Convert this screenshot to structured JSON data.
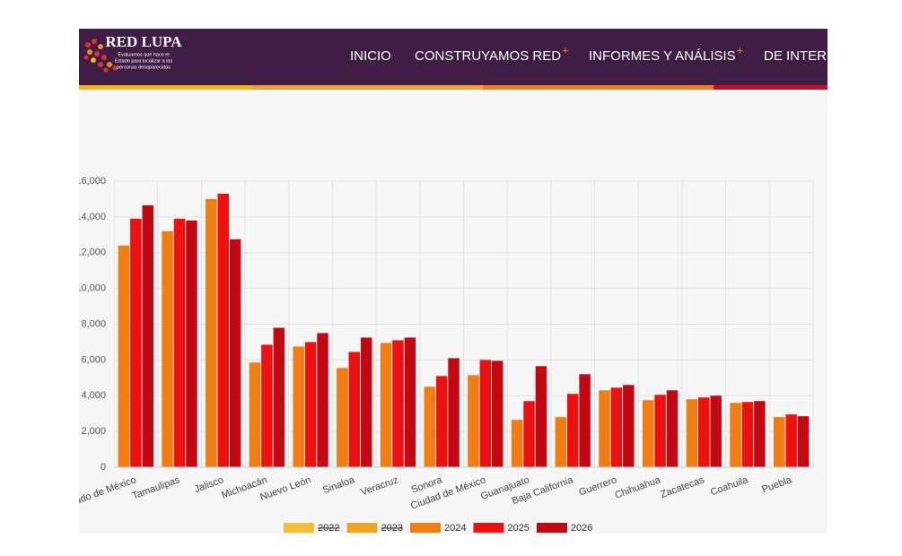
{
  "header": {
    "brand": "RED LUPA",
    "tagline": [
      "Evaluamos qué hace el",
      "Estado para localizar a las",
      "personas desaparecidas"
    ],
    "nav": [
      {
        "label": "INICIO"
      },
      {
        "label": "CONSTRUYAMOS RED",
        "suffix": "+"
      },
      {
        "label": "INFORMES Y ANÁLISIS",
        "suffix": "+"
      },
      {
        "label": "DE INTERÉS"
      }
    ]
  },
  "chart_data": {
    "type": "bar",
    "categories": [
      "Estado de México",
      "Tamaulipas",
      "Jalisco",
      "Michoacán",
      "Nuevo León",
      "Sinaloa",
      "Veracruz",
      "Sonora",
      "Ciudad de México",
      "Guanajuato",
      "Baja California",
      "Guerrero",
      "Chihuahua",
      "Zacatecas",
      "Coahuila",
      "Puebla"
    ],
    "series": [
      {
        "name": "2022",
        "color": "#f2c038",
        "hidden": true,
        "values": [
          null,
          null,
          null,
          null,
          null,
          null,
          null,
          null,
          null,
          null,
          null,
          null,
          null,
          null,
          null,
          null
        ]
      },
      {
        "name": "2023",
        "color": "#eea524",
        "hidden": true,
        "values": [
          null,
          null,
          null,
          null,
          null,
          null,
          null,
          null,
          null,
          null,
          null,
          null,
          null,
          null,
          null,
          null
        ]
      },
      {
        "name": "2024",
        "color": "#f07d14",
        "values": [
          12400,
          13200,
          15000,
          5850,
          6750,
          5550,
          6950,
          4500,
          5150,
          2650,
          2800,
          4300,
          3750,
          3800,
          3600,
          2800
        ]
      },
      {
        "name": "2025",
        "color": "#ee1111",
        "values": [
          13900,
          13900,
          15300,
          6850,
          7000,
          6450,
          7100,
          5100,
          6000,
          3700,
          4100,
          4450,
          4050,
          3900,
          3650,
          2950
        ]
      },
      {
        "name": "2026",
        "color": "#c20812",
        "values": [
          14650,
          13800,
          12750,
          7800,
          7500,
          7250,
          7250,
          6100,
          5950,
          5650,
          5200,
          4600,
          4300,
          4000,
          3700,
          2850
        ]
      }
    ],
    "ylim": [
      0,
      16000
    ],
    "yticks": [
      0,
      {
        "value": 2000,
        "label": "2,000"
      },
      {
        "value": 4000,
        "label": "4,000"
      },
      {
        "value": 6000,
        "label": "6,000"
      },
      {
        "value": 8000,
        "label": "8,000"
      },
      {
        "value": 10000,
        "label": "10,000"
      },
      {
        "value": 12000,
        "label": "12,000"
      },
      {
        "value": 14000,
        "label": "14,000"
      },
      {
        "value": 16000,
        "label": "16,000"
      }
    ],
    "grid": true,
    "legend": "bottom"
  }
}
